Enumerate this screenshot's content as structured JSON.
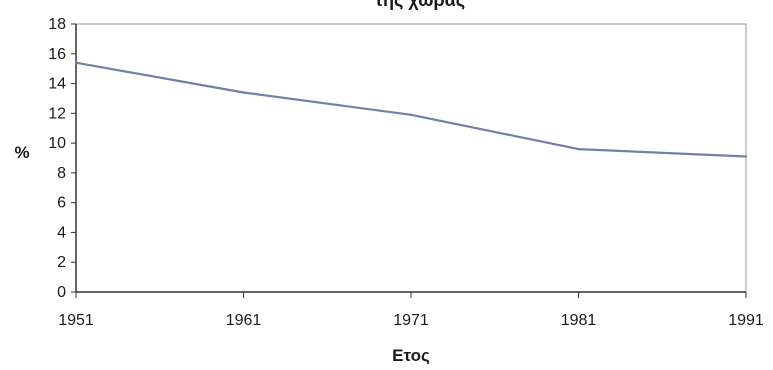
{
  "chart_data": {
    "type": "line",
    "title": "της χώρας",
    "xlabel": "Ετος",
    "ylabel": "%",
    "x": [
      1951,
      1961,
      1971,
      1981,
      1991
    ],
    "xticks": [
      "1951",
      "1961",
      "1971",
      "1981",
      "1991"
    ],
    "xlim": [
      1951,
      1991
    ],
    "ylim": [
      0,
      18
    ],
    "yticks": [
      "0",
      "2",
      "4",
      "6",
      "8",
      "10",
      "12",
      "14",
      "16",
      "18"
    ],
    "series": [
      {
        "values": [
          15.4,
          13.4,
          11.9,
          9.6,
          9.1
        ],
        "color": "#7080a8"
      }
    ],
    "grid": false,
    "legend": "none"
  }
}
